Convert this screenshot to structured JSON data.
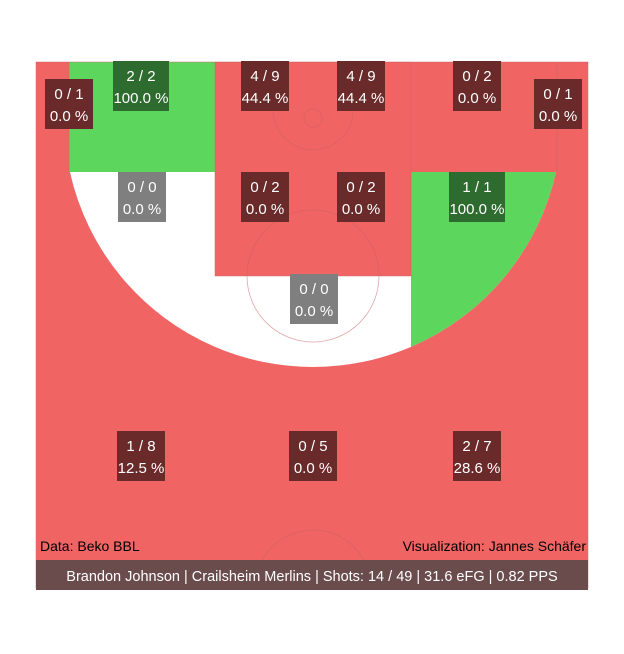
{
  "colors": {
    "hot": "#5cd65c",
    "cold": "#f06464",
    "neutral": "#ffffff",
    "hot_label": "#2e6b2e",
    "cold_label": "#6b2a2a",
    "neutral_label": "#7f7f7f",
    "footer_bg": "#6b4c4c",
    "line": "#c86060"
  },
  "chart_data": {
    "type": "heatmap",
    "zones": [
      {
        "id": "left-corner-three",
        "made": 0,
        "attempts": 1,
        "pct": "0.0 %"
      },
      {
        "id": "left-short-corner",
        "made": 2,
        "attempts": 2,
        "pct": "100.0 %"
      },
      {
        "id": "paint-left-low",
        "made": 4,
        "attempts": 9,
        "pct": "44.4 %"
      },
      {
        "id": "paint-right-low",
        "made": 4,
        "attempts": 9,
        "pct": "44.4 %"
      },
      {
        "id": "right-short-corner",
        "made": 0,
        "attempts": 2,
        "pct": "0.0 %"
      },
      {
        "id": "right-corner-three",
        "made": 0,
        "attempts": 1,
        "pct": "0.0 %"
      },
      {
        "id": "left-midrange-wing",
        "made": 0,
        "attempts": 0,
        "pct": "0.0 %"
      },
      {
        "id": "paint-left-high",
        "made": 0,
        "attempts": 2,
        "pct": "0.0 %"
      },
      {
        "id": "paint-right-high",
        "made": 0,
        "attempts": 2,
        "pct": "0.0 %"
      },
      {
        "id": "right-midrange-wing",
        "made": 1,
        "attempts": 1,
        "pct": "100.0 %"
      },
      {
        "id": "top-key",
        "made": 0,
        "attempts": 0,
        "pct": "0.0 %"
      },
      {
        "id": "left-wing-three",
        "made": 1,
        "attempts": 8,
        "pct": "12.5 %"
      },
      {
        "id": "top-three",
        "made": 0,
        "attempts": 5,
        "pct": "0.0 %"
      },
      {
        "id": "right-wing-three",
        "made": 2,
        "attempts": 7,
        "pct": "28.6 %"
      }
    ]
  },
  "labels": [
    {
      "zone": "left-corner-three",
      "line1": "0 / 1",
      "line2": "0.0 %",
      "tone": "cold"
    },
    {
      "zone": "left-short-corner",
      "line1": "2 / 2",
      "line2": "100.0 %",
      "tone": "hot"
    },
    {
      "zone": "paint-left-low",
      "line1": "4 / 9",
      "line2": "44.4 %",
      "tone": "cold"
    },
    {
      "zone": "paint-right-low",
      "line1": "4 / 9",
      "line2": "44.4 %",
      "tone": "cold"
    },
    {
      "zone": "right-short-corner",
      "line1": "0 / 2",
      "line2": "0.0 %",
      "tone": "cold"
    },
    {
      "zone": "right-corner-three",
      "line1": "0 / 1",
      "line2": "0.0 %",
      "tone": "cold"
    },
    {
      "zone": "left-midrange-wing",
      "line1": "0 / 0",
      "line2": "0.0 %",
      "tone": "neutral"
    },
    {
      "zone": "paint-left-high",
      "line1": "0 / 2",
      "line2": "0.0 %",
      "tone": "cold"
    },
    {
      "zone": "paint-right-high",
      "line1": "0 / 2",
      "line2": "0.0 %",
      "tone": "cold"
    },
    {
      "zone": "right-midrange-wing",
      "line1": "1 / 1",
      "line2": "100.0 %",
      "tone": "hot"
    },
    {
      "zone": "top-key",
      "line1": "0 / 0",
      "line2": "0.0 %",
      "tone": "neutral"
    },
    {
      "zone": "left-wing-three",
      "line1": "1 / 8",
      "line2": "12.5 %",
      "tone": "cold"
    },
    {
      "zone": "top-three",
      "line1": "0 / 5",
      "line2": "0.0 %",
      "tone": "cold"
    },
    {
      "zone": "right-wing-three",
      "line1": "2 / 7",
      "line2": "28.6 %",
      "tone": "cold"
    }
  ],
  "annotations": {
    "data_source": "Data: Beko BBL",
    "visualization": "Visualization: Jannes Schäfer",
    "footer": "Brandon Johnson | Crailsheim Merlins | Shots: 14 / 49 | 31.6 eFG | 0.82 PPS"
  }
}
